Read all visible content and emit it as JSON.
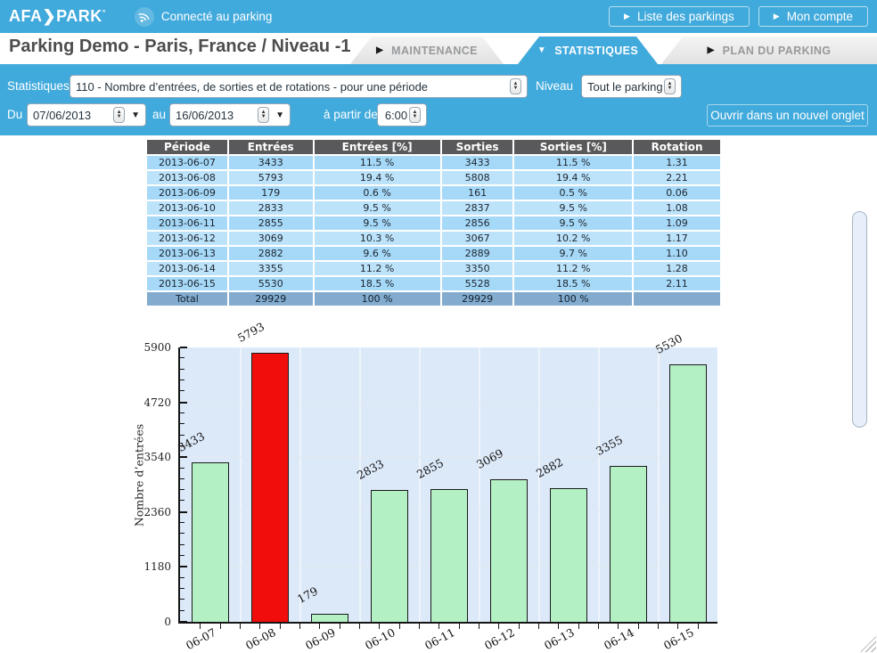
{
  "colors": {
    "accent": "#41aadc",
    "table_header_bg": "#59595b",
    "row_odd": "#a6d9f7",
    "row_even": "#bce3fa",
    "total_bg": "#82abce"
  },
  "header": {
    "logo": "AFA❯PARK",
    "logo_mark": "°",
    "status": "Connecté au parking",
    "buttons": [
      {
        "label": "Liste des parkings"
      },
      {
        "label": "Mon compte"
      }
    ]
  },
  "titlebar": {
    "title": "Parking Demo - Paris, France / Niveau -1",
    "tabs": [
      {
        "label": "MAINTENANCE",
        "active": false
      },
      {
        "label": "STATISTIQUES",
        "active": true
      },
      {
        "label": "PLAN DU PARKING",
        "active": false
      }
    ]
  },
  "filters": {
    "stat_label": "Statistiques",
    "stat_value": "110 - Nombre d’entrées, de sorties et de rotations - pour une période",
    "niveau_label": "Niveau",
    "niveau_value": "Tout le parking",
    "du_label": "Du",
    "du_value": "07/06/2013",
    "au_label": "au",
    "au_value": "16/06/2013",
    "from_label": "à partir de",
    "from_value": "6:00",
    "open_button": "Ouvrir dans un nouvel onglet"
  },
  "table": {
    "headers": [
      "Période",
      "Entrées",
      "Entrées [%]",
      "Sorties",
      "Sorties [%]",
      "Rotation"
    ],
    "rows": [
      [
        "2013-06-07",
        "3433",
        "11.5 %",
        "3433",
        "11.5 %",
        "1.31"
      ],
      [
        "2013-06-08",
        "5793",
        "19.4 %",
        "5808",
        "19.4 %",
        "2.21"
      ],
      [
        "2013-06-09",
        "179",
        "0.6 %",
        "161",
        "0.5 %",
        "0.06"
      ],
      [
        "2013-06-10",
        "2833",
        "9.5 %",
        "2837",
        "9.5 %",
        "1.08"
      ],
      [
        "2013-06-11",
        "2855",
        "9.5 %",
        "2856",
        "9.5 %",
        "1.09"
      ],
      [
        "2013-06-12",
        "3069",
        "10.3 %",
        "3067",
        "10.2 %",
        "1.17"
      ],
      [
        "2013-06-13",
        "2882",
        "9.6 %",
        "2889",
        "9.7 %",
        "1.10"
      ],
      [
        "2013-06-14",
        "3355",
        "11.2 %",
        "3350",
        "11.2 %",
        "1.28"
      ],
      [
        "2013-06-15",
        "5530",
        "18.5 %",
        "5528",
        "18.5 %",
        "2.11"
      ]
    ],
    "total": [
      "Total",
      "29929",
      "100 %",
      "29929",
      "100 %",
      ""
    ]
  },
  "chart_data": {
    "type": "bar",
    "categories": [
      "06-07",
      "06-08",
      "06-09",
      "06-10",
      "06-11",
      "06-12",
      "06-13",
      "06-14",
      "06-15"
    ],
    "values": [
      3433,
      5793,
      179,
      2833,
      2855,
      3069,
      2882,
      3355,
      5530
    ],
    "title": "",
    "xlabel": "",
    "ylabel": "Nombre d’entrées",
    "ylim": [
      0,
      5900
    ],
    "yticks": [
      0,
      1180,
      2360,
      3540,
      4720,
      5900
    ],
    "grid": true,
    "bar_color": "#b3f0c4",
    "highlight_index": 1,
    "highlight_color": "#f20d0d",
    "plot_bg": "#dce9f9"
  }
}
